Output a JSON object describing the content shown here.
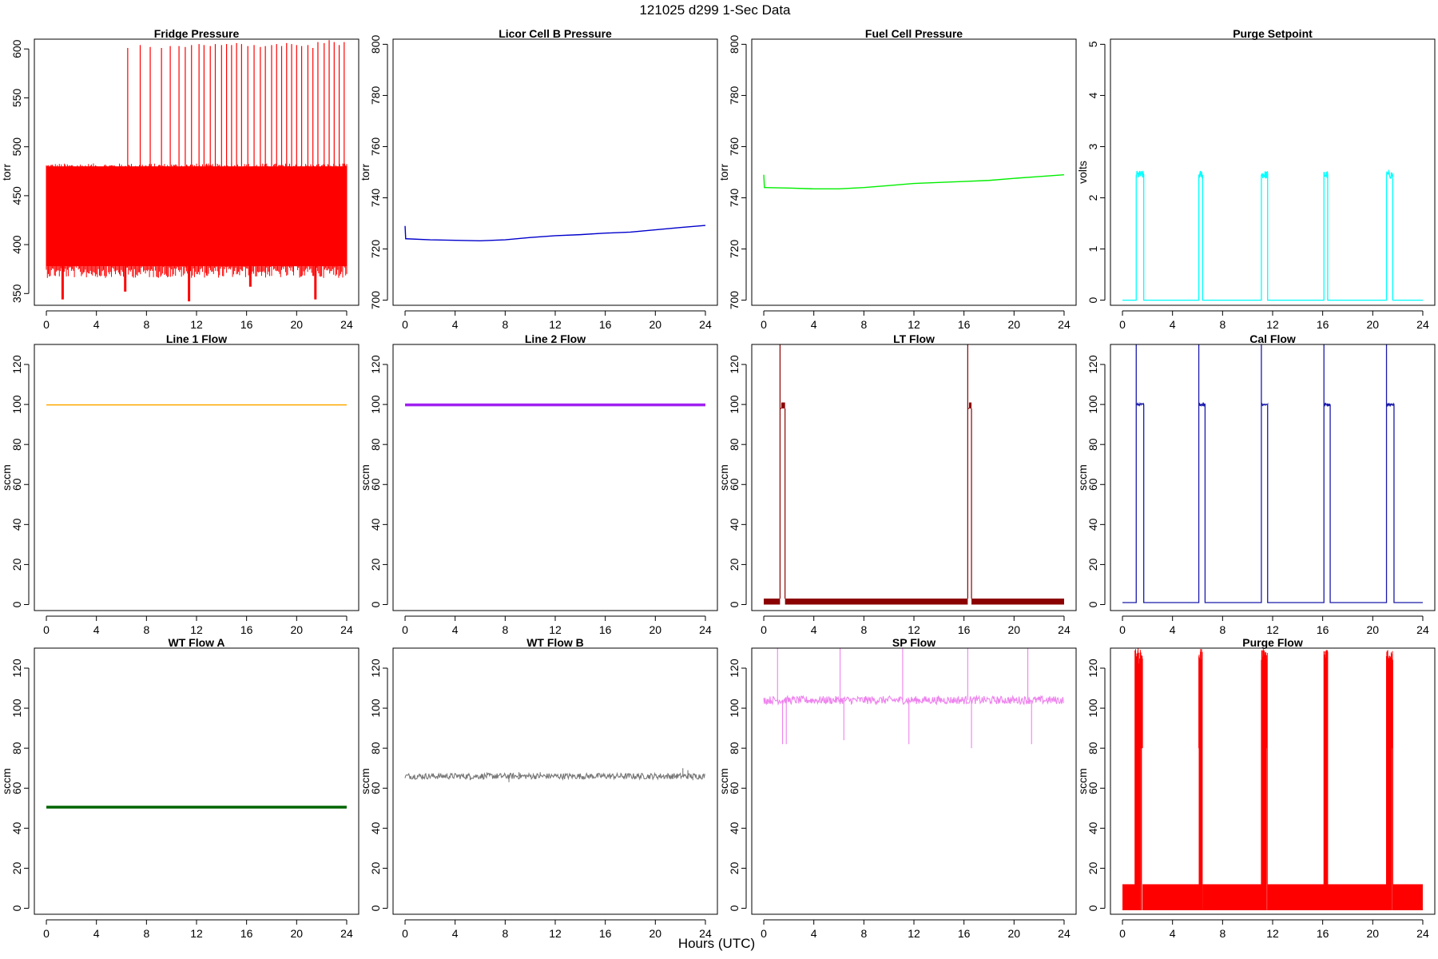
{
  "figure": {
    "title": "121025   d299   1-Sec Data",
    "xlabel": "Hours (UTC)"
  },
  "chart_data": [
    {
      "id": "fridge",
      "type": "line",
      "title": "Fridge Pressure",
      "ylabel": "torr",
      "color": "#ff0000",
      "xlim": [
        0,
        24
      ],
      "xticks": [
        0,
        4,
        8,
        12,
        16,
        20,
        24
      ],
      "ylim": [
        338,
        610
      ],
      "yticks": [
        350,
        400,
        450,
        500,
        550,
        600
      ],
      "series": [
        {
          "style": "noise-band",
          "lo": 378,
          "hi": 480,
          "dips": [
            {
              "x": 1.3,
              "y": 344
            },
            {
              "x": 6.3,
              "y": 352
            },
            {
              "x": 11.4,
              "y": 342
            },
            {
              "x": 16.3,
              "y": 357
            },
            {
              "x": 21.5,
              "y": 344
            }
          ],
          "spikes": {
            "x": [
              6.5,
              7.5,
              8.3,
              9.2,
              9.9,
              10.6,
              11.1,
              11.6,
              12.2,
              12.6,
              13.1,
              13.5,
              14.0,
              14.4,
              14.8,
              15.2,
              15.6,
              16.1,
              16.6,
              17.1,
              17.5,
              18.0,
              18.4,
              18.8,
              19.2,
              19.6,
              20.0,
              20.4,
              20.9,
              21.3,
              21.7,
              22.2,
              22.6,
              23.0,
              23.4,
              23.8
            ],
            "y": [
              601,
              604,
              602,
              601,
              603,
              603,
              602,
              604,
              605,
              604,
              603,
              605,
              604,
              605,
              604,
              606,
              605,
              603,
              604,
              602,
              603,
              604,
              605,
              603,
              606,
              605,
              604,
              603,
              604,
              601,
              607,
              606,
              609,
              607,
              604,
              607
            ]
          }
        }
      ]
    },
    {
      "id": "licor",
      "type": "line",
      "title": "Licor Cell B Pressure",
      "ylabel": "torr",
      "color": "#0000cc",
      "xlim": [
        0,
        24
      ],
      "xticks": [
        0,
        4,
        8,
        12,
        16,
        20,
        24
      ],
      "ylim": [
        698,
        802
      ],
      "yticks": [
        700,
        720,
        740,
        760,
        780,
        800
      ],
      "series": [
        {
          "style": "line",
          "x": [
            0,
            0.05,
            0.1,
            2,
            4,
            6,
            8,
            10,
            12,
            14,
            16,
            18,
            20,
            22,
            24
          ],
          "y": [
            729,
            724,
            724,
            723.6,
            723.4,
            723.2,
            723.6,
            724.5,
            725.2,
            725.6,
            726.2,
            726.6,
            727.5,
            728.4,
            729.2
          ]
        }
      ]
    },
    {
      "id": "fuelcell",
      "type": "line",
      "title": "Fuel Cell Pressure",
      "ylabel": "torr",
      "color": "#00ee00",
      "xlim": [
        0,
        24
      ],
      "xticks": [
        0,
        4,
        8,
        12,
        16,
        20,
        24
      ],
      "ylim": [
        698,
        802
      ],
      "yticks": [
        700,
        720,
        740,
        760,
        780,
        800
      ],
      "series": [
        {
          "style": "line",
          "x": [
            0,
            0.05,
            0.1,
            2,
            4,
            6,
            8,
            10,
            12,
            14,
            16,
            18,
            20,
            22,
            24
          ],
          "y": [
            749,
            744,
            744,
            743.8,
            743.5,
            743.5,
            744,
            744.8,
            745.6,
            746,
            746.4,
            746.8,
            747.6,
            748.3,
            749
          ]
        }
      ]
    },
    {
      "id": "purgeset",
      "type": "line",
      "title": "Purge Setpoint",
      "ylabel": "volts",
      "color": "#00ffff",
      "xlim": [
        0,
        24
      ],
      "xticks": [
        0,
        4,
        8,
        12,
        16,
        20,
        24
      ],
      "ylim": [
        -0.1,
        5.1
      ],
      "yticks": [
        0,
        1,
        2,
        3,
        4,
        5
      ],
      "series": [
        {
          "style": "pulses",
          "base": 0,
          "top": 2.45,
          "jitter": 0.08,
          "pulses": [
            [
              1.1,
              1.7
            ],
            [
              6.1,
              6.4
            ],
            [
              11.1,
              11.6
            ],
            [
              16.1,
              16.4
            ],
            [
              21.1,
              21.6
            ]
          ]
        }
      ]
    },
    {
      "id": "line1",
      "type": "line",
      "title": "Line 1 Flow",
      "ylabel": "sccm",
      "color": "#ffaa00",
      "xlim": [
        0,
        24
      ],
      "xticks": [
        0,
        4,
        8,
        12,
        16,
        20,
        24
      ],
      "ylim": [
        -3,
        130
      ],
      "yticks": [
        0,
        20,
        40,
        60,
        80,
        100,
        120
      ],
      "series": [
        {
          "style": "line",
          "x": [
            0,
            24
          ],
          "y": [
            99.8,
            99.8
          ]
        }
      ]
    },
    {
      "id": "line2",
      "type": "line",
      "title": "Line 2 Flow",
      "ylabel": "sccm",
      "color": "#a020f0",
      "xlim": [
        0,
        24
      ],
      "xticks": [
        0,
        4,
        8,
        12,
        16,
        20,
        24
      ],
      "ylim": [
        -3,
        130
      ],
      "yticks": [
        0,
        20,
        40,
        60,
        80,
        100,
        120
      ],
      "series": [
        {
          "style": "line",
          "thick": true,
          "x": [
            0,
            24
          ],
          "y": [
            99.8,
            99.8
          ]
        }
      ]
    },
    {
      "id": "ltflow",
      "type": "line",
      "title": "LT Flow",
      "ylabel": "sccm",
      "color": "#8b0000",
      "xlim": [
        0,
        24
      ],
      "xticks": [
        0,
        4,
        8,
        12,
        16,
        20,
        24
      ],
      "ylim": [
        -3,
        130
      ],
      "yticks": [
        0,
        20,
        40,
        60,
        80,
        100,
        120
      ],
      "series": [
        {
          "style": "block-pulses",
          "lo": 0,
          "hi": 3,
          "pulse_lo": 98,
          "pulse_hi": 101,
          "spike": 130,
          "pulses": [
            [
              1.3,
              1.7
            ],
            [
              16.3,
              16.6
            ]
          ]
        }
      ]
    },
    {
      "id": "calflow",
      "type": "line",
      "title": "Cal Flow",
      "ylabel": "sccm",
      "color": "#1a1aaa",
      "xlim": [
        0,
        24
      ],
      "xticks": [
        0,
        4,
        8,
        12,
        16,
        20,
        24
      ],
      "ylim": [
        -3,
        130
      ],
      "yticks": [
        0,
        20,
        40,
        60,
        80,
        100,
        120
      ],
      "series": [
        {
          "style": "pulses",
          "base": 1,
          "top": 100,
          "jitter": 0.5,
          "spike": 130,
          "pulses": [
            [
              1.1,
              1.7
            ],
            [
              6.1,
              6.6
            ],
            [
              11.1,
              11.6
            ],
            [
              16.1,
              16.6
            ],
            [
              21.1,
              21.7
            ]
          ]
        }
      ]
    },
    {
      "id": "wta",
      "type": "line",
      "title": "WT Flow A",
      "ylabel": "sccm",
      "color": "#006400",
      "xlim": [
        0,
        24
      ],
      "xticks": [
        0,
        4,
        8,
        12,
        16,
        20,
        24
      ],
      "ylim": [
        -3,
        130
      ],
      "yticks": [
        0,
        20,
        40,
        60,
        80,
        100,
        120
      ],
      "series": [
        {
          "style": "line",
          "thick": true,
          "x": [
            0,
            24
          ],
          "y": [
            50.5,
            50.5
          ]
        }
      ]
    },
    {
      "id": "wtb",
      "type": "line",
      "title": "WT Flow B",
      "ylabel": "sccm",
      "color": "#777777",
      "xlim": [
        0,
        24
      ],
      "xticks": [
        0,
        4,
        8,
        12,
        16,
        20,
        24
      ],
      "ylim": [
        -3,
        130
      ],
      "yticks": [
        0,
        20,
        40,
        60,
        80,
        100,
        120
      ],
      "series": [
        {
          "style": "noisy-line",
          "base": 66,
          "amp": 1.5,
          "outliers": [
            [
              5.2,
              64
            ],
            [
              8.3,
              63
            ],
            [
              9.1,
              68
            ],
            [
              10.8,
              68
            ],
            [
              22.2,
              70
            ],
            [
              22.6,
              69
            ],
            [
              23.0,
              64
            ]
          ]
        }
      ]
    },
    {
      "id": "spflow",
      "type": "line",
      "title": "SP Flow",
      "ylabel": "sccm",
      "color": "#ee82ee",
      "xlim": [
        0,
        24
      ],
      "xticks": [
        0,
        4,
        8,
        12,
        16,
        20,
        24
      ],
      "ylim": [
        -3,
        130
      ],
      "yticks": [
        0,
        20,
        40,
        60,
        80,
        100,
        120
      ],
      "series": [
        {
          "style": "noisy-line",
          "base": 104,
          "amp": 2,
          "outliers": [
            [
              1.1,
              130
            ],
            [
              1.5,
              82
            ],
            [
              1.8,
              82
            ],
            [
              6.1,
              130
            ],
            [
              6.4,
              84
            ],
            [
              11.1,
              130
            ],
            [
              11.6,
              82
            ],
            [
              16.3,
              130
            ],
            [
              16.6,
              80
            ],
            [
              21.1,
              130
            ],
            [
              21.4,
              82
            ]
          ]
        }
      ]
    },
    {
      "id": "purgeflow",
      "type": "line",
      "title": "Purge Flow",
      "ylabel": "sccm",
      "color": "#ff0000",
      "xlim": [
        0,
        24
      ],
      "xticks": [
        0,
        4,
        8,
        12,
        16,
        20,
        24
      ],
      "ylim": [
        -3,
        130
      ],
      "yticks": [
        0,
        20,
        40,
        60,
        80,
        100,
        120
      ],
      "series": [
        {
          "style": "band-pulses",
          "lo": -1,
          "hi": 12,
          "top": 126,
          "pulses": [
            [
              1.0,
              1.6
            ],
            [
              6.1,
              6.4
            ],
            [
              11.1,
              11.6
            ],
            [
              16.1,
              16.4
            ],
            [
              21.1,
              21.6
            ]
          ]
        }
      ]
    }
  ]
}
